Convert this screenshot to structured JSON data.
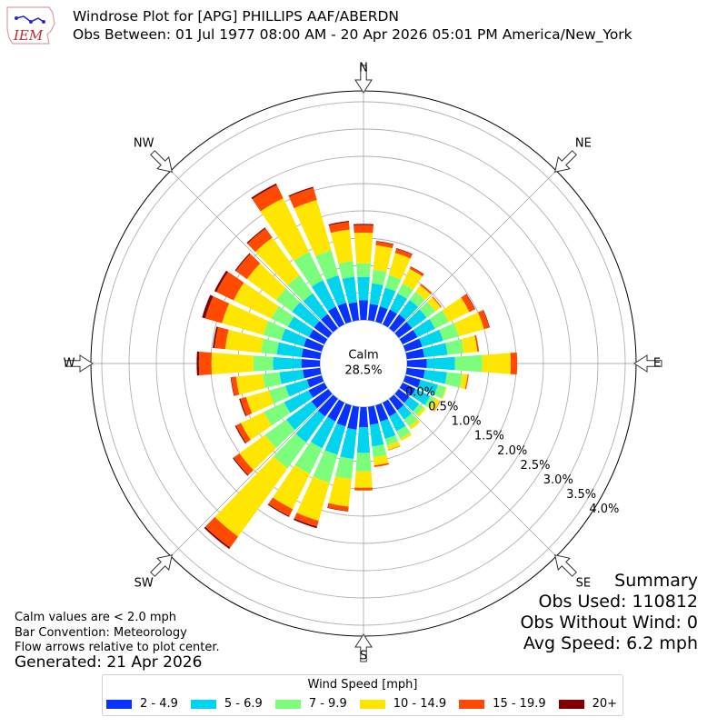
{
  "header": {
    "logo_text": "IEM",
    "title_line1": "Windrose Plot for [APG] PHILLIPS AAF/ABERDN",
    "title_line2": "Obs Between: 01 Jul 1977 08:00 AM - 20 Apr 2026 05:01 PM America/New_York"
  },
  "notes": {
    "calm_def": "Calm values are < 2.0 mph",
    "bar_convention": "Bar Convention: Meteorology",
    "flow_arrows": "Flow arrows relative to plot center.",
    "generated": "Generated: 21 Apr 2026"
  },
  "summary": {
    "title": "Summary",
    "obs_used": "Obs Used: 110812",
    "obs_without_wind": "Obs Without Wind: 0",
    "avg_speed": "Avg Speed: 6.2 mph"
  },
  "chart_data": {
    "type": "windrose",
    "calm_label": "Calm",
    "calm_value": "28.5%",
    "directions": [
      "N",
      "NE",
      "E",
      "SE",
      "S",
      "SW",
      "W",
      "NW"
    ],
    "radial_ticks": [
      "0.0%",
      "0.5%",
      "1.0%",
      "1.5%",
      "2.0%",
      "2.5%",
      "3.0%",
      "3.5%",
      "4.0%"
    ],
    "radial_max": 4.2,
    "legend_title": "Wind Speed [mph]",
    "speed_bins": [
      {
        "label": "2 - 4.9",
        "color": "#0832ff"
      },
      {
        "label": "5 - 6.9",
        "color": "#00d4ee"
      },
      {
        "label": "7 - 9.9",
        "color": "#7cfe7c"
      },
      {
        "label": "10 - 14.9",
        "color": "#ffe600"
      },
      {
        "label": "15 - 19.9",
        "color": "#ff4a00"
      },
      {
        "label": "20+",
        "color": "#800000"
      }
    ],
    "bin_width_deg": 10,
    "sectors": [
      {
        "dir": 0,
        "values": [
          0.36,
          0.43,
          0.25,
          0.56,
          0.14,
          0.02
        ]
      },
      {
        "dir": 10,
        "values": [
          0.3,
          0.38,
          0.25,
          0.45,
          0.07,
          0.01
        ]
      },
      {
        "dir": 20,
        "values": [
          0.29,
          0.36,
          0.24,
          0.42,
          0.08,
          0.01
        ]
      },
      {
        "dir": 30,
        "values": [
          0.3,
          0.33,
          0.2,
          0.3,
          0.04,
          0.01
        ]
      },
      {
        "dir": 40,
        "values": [
          0.31,
          0.33,
          0.18,
          0.15,
          0.03,
          0.0
        ]
      },
      {
        "dir": 50,
        "values": [
          0.3,
          0.33,
          0.2,
          0.12,
          0.02,
          0.0
        ]
      },
      {
        "dir": 60,
        "values": [
          0.3,
          0.36,
          0.28,
          0.42,
          0.11,
          0.01
        ]
      },
      {
        "dir": 70,
        "values": [
          0.32,
          0.4,
          0.3,
          0.48,
          0.1,
          0.01
        ]
      },
      {
        "dir": 80,
        "values": [
          0.32,
          0.43,
          0.3,
          0.25,
          0.03,
          0.0
        ]
      },
      {
        "dir": 90,
        "values": [
          0.36,
          0.52,
          0.5,
          0.52,
          0.12,
          0.0
        ]
      },
      {
        "dir": 100,
        "values": [
          0.33,
          0.41,
          0.28,
          0.1,
          0.02,
          0.0
        ]
      },
      {
        "dir": 110,
        "values": [
          0.29,
          0.33,
          0.15,
          0.02,
          0.0,
          0.0
        ]
      },
      {
        "dir": 120,
        "values": [
          0.26,
          0.3,
          0.1,
          0.1,
          0.01,
          0.0
        ]
      },
      {
        "dir": 130,
        "values": [
          0.24,
          0.22,
          0.1,
          0.05,
          0.0,
          0.0
        ]
      },
      {
        "dir": 140,
        "values": [
          0.26,
          0.21,
          0.16,
          0.06,
          0.0,
          0.0
        ]
      },
      {
        "dir": 150,
        "values": [
          0.28,
          0.3,
          0.15,
          0.05,
          0.0,
          0.0
        ]
      },
      {
        "dir": 160,
        "values": [
          0.31,
          0.33,
          0.12,
          0.09,
          0.01,
          0.0
        ]
      },
      {
        "dir": 170,
        "values": [
          0.33,
          0.4,
          0.2,
          0.15,
          0.03,
          0.0
        ]
      },
      {
        "dir": 180,
        "values": [
          0.37,
          0.47,
          0.34,
          0.3,
          0.05,
          0.0
        ]
      },
      {
        "dir": 190,
        "values": [
          0.42,
          0.54,
          0.37,
          0.51,
          0.08,
          0.01
        ]
      },
      {
        "dir": 200,
        "values": [
          0.4,
          0.54,
          0.53,
          0.73,
          0.11,
          0.03
        ]
      },
      {
        "dir": 210,
        "values": [
          0.38,
          0.55,
          0.52,
          0.72,
          0.14,
          0.02
        ]
      },
      {
        "dir": 220,
        "values": [
          0.4,
          0.59,
          0.58,
          1.55,
          0.25,
          0.03
        ]
      },
      {
        "dir": 230,
        "values": [
          0.38,
          0.57,
          0.48,
          0.58,
          0.13,
          0.02
        ]
      },
      {
        "dir": 240,
        "values": [
          0.32,
          0.5,
          0.41,
          0.47,
          0.1,
          0.02
        ]
      },
      {
        "dir": 250,
        "values": [
          0.28,
          0.41,
          0.31,
          0.44,
          0.11,
          0.02
        ]
      },
      {
        "dir": 260,
        "values": [
          0.32,
          0.43,
          0.31,
          0.49,
          0.09,
          0.01
        ]
      },
      {
        "dir": 270,
        "values": [
          0.34,
          0.52,
          0.36,
          0.77,
          0.23,
          0.04
        ]
      },
      {
        "dir": 280,
        "values": [
          0.34,
          0.46,
          0.29,
          0.66,
          0.2,
          0.03
        ]
      },
      {
        "dir": 290,
        "values": [
          0.34,
          0.43,
          0.34,
          0.79,
          0.32,
          0.06
        ]
      },
      {
        "dir": 300,
        "values": [
          0.31,
          0.43,
          0.34,
          0.77,
          0.35,
          0.04
        ]
      },
      {
        "dir": 310,
        "values": [
          0.32,
          0.5,
          0.36,
          0.66,
          0.25,
          0.02
        ]
      },
      {
        "dir": 320,
        "values": [
          0.32,
          0.47,
          0.41,
          0.85,
          0.21,
          0.02
        ]
      },
      {
        "dir": 330,
        "values": [
          0.36,
          0.54,
          0.58,
          1.09,
          0.27,
          0.03
        ]
      },
      {
        "dir": 340,
        "values": [
          0.36,
          0.52,
          0.48,
          0.96,
          0.23,
          0.02
        ]
      },
      {
        "dir": 350,
        "values": [
          0.33,
          0.47,
          0.29,
          0.58,
          0.14,
          0.02
        ]
      }
    ]
  }
}
